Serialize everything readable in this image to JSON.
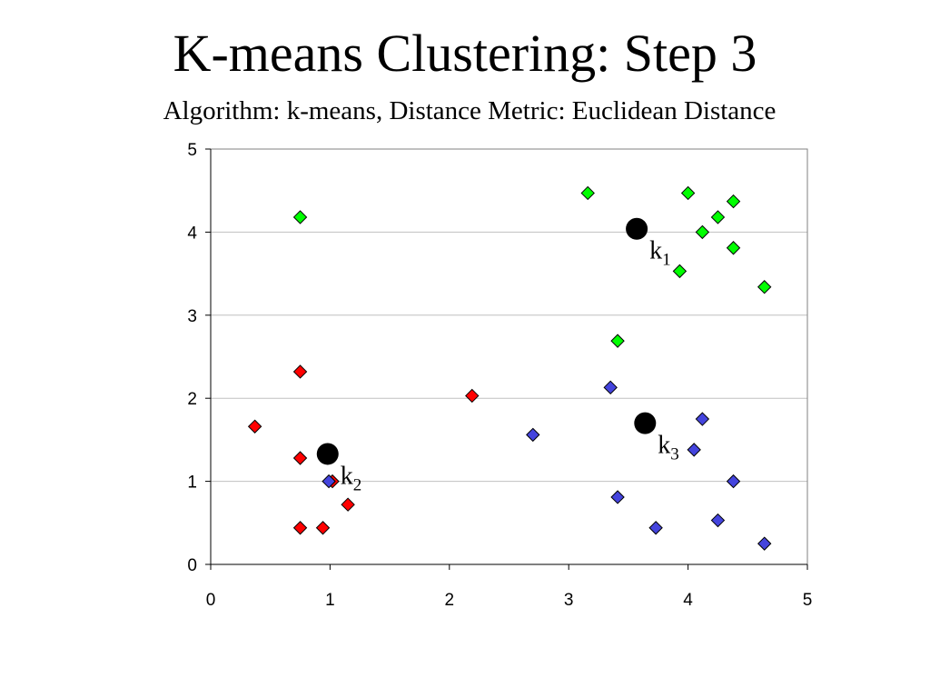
{
  "slide": {
    "title": "K-means Clustering: Step 3",
    "subtitle": "Algorithm: k-means, Distance Metric: Euclidean Distance"
  },
  "chart_data": {
    "type": "scatter",
    "xlim": [
      0,
      5
    ],
    "ylim": [
      0,
      5
    ],
    "xticks": [
      "0",
      "1",
      "2",
      "3",
      "4",
      "5"
    ],
    "yticks": [
      "0",
      "1",
      "2",
      "3",
      "4",
      "5"
    ],
    "grid": "horizontal",
    "series": [
      {
        "marker": "diamond",
        "color": "#00ff00",
        "points": [
          [
            0.75,
            4.18
          ],
          [
            3.16,
            4.47
          ],
          [
            4.0,
            4.47
          ],
          [
            4.25,
            4.18
          ],
          [
            4.38,
            4.37
          ],
          [
            4.12,
            4.0
          ],
          [
            4.38,
            3.81
          ],
          [
            3.93,
            3.53
          ],
          [
            4.64,
            3.34
          ],
          [
            3.41,
            2.69
          ]
        ]
      },
      {
        "marker": "diamond",
        "color": "#ff0000",
        "points": [
          [
            0.75,
            2.32
          ],
          [
            0.37,
            1.66
          ],
          [
            2.19,
            2.03
          ],
          [
            0.75,
            1.28
          ],
          [
            1.02,
            1.0
          ],
          [
            1.15,
            0.72
          ],
          [
            0.75,
            0.44
          ],
          [
            0.94,
            0.44
          ]
        ]
      },
      {
        "marker": "diamond",
        "color": "#4444dd",
        "points": [
          [
            3.35,
            2.13
          ],
          [
            2.7,
            1.56
          ],
          [
            4.12,
            1.75
          ],
          [
            4.05,
            1.38
          ],
          [
            4.38,
            1.0
          ],
          [
            3.41,
            0.81
          ],
          [
            3.73,
            0.44
          ],
          [
            4.25,
            0.53
          ],
          [
            4.64,
            0.25
          ],
          [
            0.99,
            1.0
          ]
        ]
      }
    ],
    "centroids": [
      {
        "label": "k",
        "sub": "1",
        "x": 3.57,
        "y": 4.04
      },
      {
        "label": "k",
        "sub": "2",
        "x": 0.98,
        "y": 1.33
      },
      {
        "label": "k",
        "sub": "3",
        "x": 3.64,
        "y": 1.7
      }
    ]
  }
}
